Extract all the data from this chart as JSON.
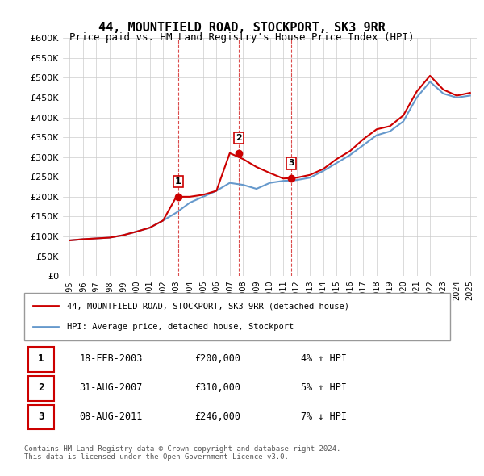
{
  "title": "44, MOUNTFIELD ROAD, STOCKPORT, SK3 9RR",
  "subtitle": "Price paid vs. HM Land Registry's House Price Index (HPI)",
  "ylabel_ticks": [
    "£0",
    "£50K",
    "£100K",
    "£150K",
    "£200K",
    "£250K",
    "£300K",
    "£350K",
    "£400K",
    "£450K",
    "£500K",
    "£550K",
    "£600K"
  ],
  "ytick_values": [
    0,
    50000,
    100000,
    150000,
    200000,
    250000,
    300000,
    350000,
    400000,
    450000,
    500000,
    550000,
    600000
  ],
  "x_years": [
    1995,
    1996,
    1997,
    1998,
    1999,
    2000,
    2001,
    2002,
    2003,
    2004,
    2005,
    2006,
    2007,
    2008,
    2009,
    2010,
    2011,
    2012,
    2013,
    2014,
    2015,
    2016,
    2017,
    2018,
    2019,
    2020,
    2021,
    2022,
    2023,
    2024,
    2025
  ],
  "hpi_values": [
    90000,
    93000,
    95000,
    97000,
    103000,
    112000,
    122000,
    140000,
    160000,
    185000,
    200000,
    215000,
    235000,
    230000,
    220000,
    235000,
    240000,
    242000,
    248000,
    265000,
    285000,
    305000,
    330000,
    355000,
    365000,
    390000,
    450000,
    490000,
    460000,
    450000,
    455000
  ],
  "property_values": [
    90000,
    93000,
    95000,
    97000,
    103000,
    112000,
    122000,
    140000,
    200000,
    200000,
    205000,
    215000,
    310000,
    295000,
    275000,
    260000,
    246000,
    248000,
    255000,
    270000,
    295000,
    315000,
    345000,
    370000,
    378000,
    405000,
    465000,
    505000,
    470000,
    455000,
    462000
  ],
  "sale_dates": [
    2003.12,
    2007.67,
    2011.58
  ],
  "sale_prices": [
    200000,
    310000,
    246000
  ],
  "sale_labels": [
    "1",
    "2",
    "3"
  ],
  "vline_dates": [
    2003.12,
    2007.67,
    2011.58
  ],
  "property_color": "#cc0000",
  "hpi_color": "#6699cc",
  "grid_color": "#cccccc",
  "background_color": "#ffffff",
  "legend_property": "44, MOUNTFIELD ROAD, STOCKPORT, SK3 9RR (detached house)",
  "legend_hpi": "HPI: Average price, detached house, Stockport",
  "table_data": [
    {
      "num": "1",
      "date": "18-FEB-2003",
      "price": "£200,000",
      "pct": "4% ↑ HPI"
    },
    {
      "num": "2",
      "date": "31-AUG-2007",
      "price": "£310,000",
      "pct": "5% ↑ HPI"
    },
    {
      "num": "3",
      "date": "08-AUG-2011",
      "price": "£246,000",
      "pct": "7% ↓ HPI"
    }
  ],
  "footer": "Contains HM Land Registry data © Crown copyright and database right 2024.\nThis data is licensed under the Open Government Licence v3.0."
}
